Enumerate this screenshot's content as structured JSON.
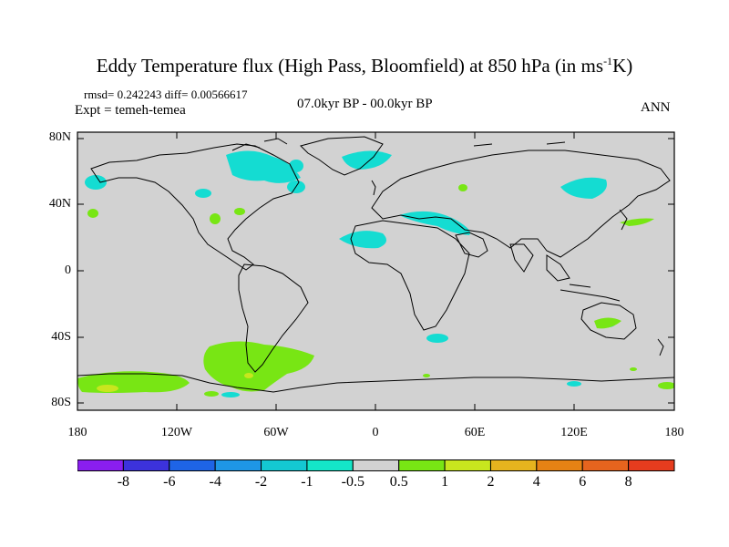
{
  "title": "Eddy Temperature flux (High Pass, Bloomfield) at 850 hPa (in ms",
  "title_sup": "-1",
  "title_end": "K)",
  "rmsd_text": "rmsd= 0.242243 diff= 0.00566617",
  "expt_text": "Expt = temeh-temea",
  "period_text": "07.0kyr BP - 00.0kyr BP",
  "season_text": "ANN",
  "lat_labels": [
    "80N",
    "40N",
    "0",
    "40S",
    "80S"
  ],
  "lon_labels": [
    "180",
    "120W",
    "60W",
    "0",
    "60E",
    "120E",
    "180"
  ],
  "colorbar": {
    "labels": [
      "-8",
      "-6",
      "-4",
      "-2",
      "-1",
      "-0.5",
      "0.5",
      "1",
      "2",
      "4",
      "6",
      "8"
    ],
    "colors": [
      "#8a1ef0",
      "#3c32dc",
      "#1e64e6",
      "#1e96e6",
      "#14c8d2",
      "#14e6c8",
      "#d2d2d2",
      "#78e614",
      "#c8e61e",
      "#e6b41e",
      "#e68214",
      "#e6641e",
      "#e63c1e"
    ]
  },
  "colors": {
    "ocean_land_bg": "#d2d2d2",
    "neg_anomaly": "#14dcd2",
    "pos_anomaly": "#78e614",
    "strong_pos": "#c8e61e"
  }
}
